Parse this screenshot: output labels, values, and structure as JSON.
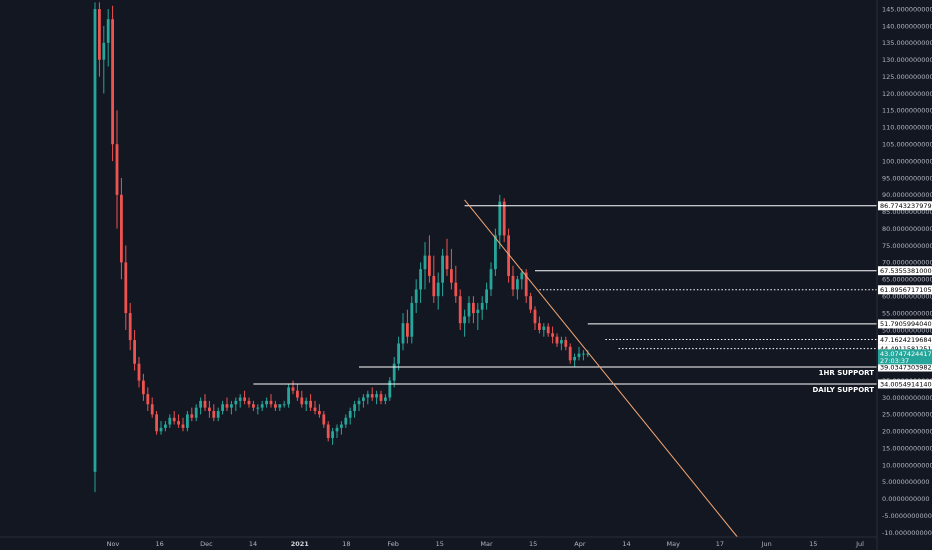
{
  "colors": {
    "background": "#131722",
    "up": "#26a69a",
    "down": "#ef5350",
    "line": "#ffffff",
    "trendline": "#f5a572",
    "axis_text": "#b2b5be"
  },
  "chart_data": {
    "type": "candlestick",
    "y_ticks": [
      "145.0000000000",
      "140.0000000000",
      "135.0000000000",
      "130.0000000000",
      "125.0000000000",
      "120.0000000000",
      "115.0000000000",
      "110.0000000000",
      "105.0000000000",
      "100.0000000000",
      "95.0000000000",
      "90.0000000000",
      "85.0000000000",
      "80.0000000000",
      "75.0000000000",
      "70.0000000000",
      "65.0000000000",
      "60.0000000000",
      "55.0000000000",
      "50.0000000000",
      "45.0000000000",
      "40.0000000000",
      "35.0000000000",
      "30.0000000000",
      "25.0000000000",
      "20.0000000000",
      "15.0000000000",
      "10.0000000000",
      "5.0000000000",
      "0.0000000000",
      "-5.0000000000",
      "-10.0000000000"
    ],
    "x_ticks": [
      {
        "label": "Nov",
        "bold": false
      },
      {
        "label": "16",
        "bold": false
      },
      {
        "label": "Dec",
        "bold": false
      },
      {
        "label": "14",
        "bold": false
      },
      {
        "label": "2021",
        "bold": true
      },
      {
        "label": "18",
        "bold": false
      },
      {
        "label": "Feb",
        "bold": false
      },
      {
        "label": "15",
        "bold": false
      },
      {
        "label": "Mar",
        "bold": false
      },
      {
        "label": "15",
        "bold": false
      },
      {
        "label": "Apr",
        "bold": false
      },
      {
        "label": "14",
        "bold": false
      },
      {
        "label": "May",
        "bold": false
      },
      {
        "label": "17",
        "bold": false
      },
      {
        "label": "Jun",
        "bold": false
      },
      {
        "label": "15",
        "bold": false
      },
      {
        "label": "Jul",
        "bold": false
      }
    ],
    "ylim": [
      -11.3,
      146.8
    ],
    "price_levels": [
      {
        "label": "86.7743237979",
        "value": 86.77,
        "style": "solid",
        "x_from": 84
      },
      {
        "label": "67.5355381000",
        "value": 67.54,
        "style": "solid",
        "x_from": 100
      },
      {
        "label": "61.8956717105",
        "value": 61.9,
        "style": "dotted",
        "x_from": 101
      },
      {
        "label": "51.7905994040",
        "value": 51.79,
        "style": "solid",
        "x_from": 112
      },
      {
        "label": "47.1624219684",
        "value": 47.16,
        "style": "dotted",
        "x_from": 116
      },
      {
        "label": "44.4911581251",
        "value": 44.49,
        "style": "dotted",
        "x_from": 119
      },
      {
        "label": "39.0347303982",
        "value": 39.03,
        "style": "solid",
        "x_from": 60
      },
      {
        "label": "34.0054914140",
        "value": 34.01,
        "style": "solid",
        "x_from": 36
      }
    ],
    "current_price": {
      "label": "43.0747424417",
      "countdown": "27:03:37",
      "value": 43.07
    },
    "annotations": [
      {
        "text": "1HR SUPPORT",
        "value": 39.03
      },
      {
        "text": "DAILY SUPPORT",
        "value": 34.01
      }
    ],
    "trendline": {
      "from": {
        "bar": 84,
        "value": 88.5
      },
      "to": {
        "bar": 146,
        "value": -11.3
      }
    },
    "candles": [
      [
        8,
        147,
        2,
        145
      ],
      [
        145,
        147,
        125,
        130
      ],
      [
        130,
        140,
        120,
        135
      ],
      [
        135,
        145,
        128,
        142
      ],
      [
        142,
        146,
        100,
        105
      ],
      [
        105,
        115,
        80,
        90
      ],
      [
        90,
        95,
        65,
        70
      ],
      [
        70,
        75,
        50,
        55
      ],
      [
        55,
        58,
        44,
        47
      ],
      [
        47,
        50,
        38,
        40
      ],
      [
        40,
        42,
        33,
        35
      ],
      [
        35,
        37,
        29,
        31
      ],
      [
        31,
        33,
        26,
        28
      ],
      [
        28,
        30,
        24,
        25
      ],
      [
        25,
        26,
        19,
        20
      ],
      [
        20,
        23,
        19,
        21
      ],
      [
        21,
        23,
        20,
        22
      ],
      [
        22,
        25,
        21,
        24
      ],
      [
        24,
        26,
        22,
        23
      ],
      [
        23,
        25,
        21,
        22
      ],
      [
        22,
        24,
        20,
        21
      ],
      [
        21,
        26,
        20,
        25
      ],
      [
        25,
        27,
        23,
        24
      ],
      [
        24,
        28,
        23,
        27
      ],
      [
        27,
        30,
        25,
        29
      ],
      [
        29,
        31,
        26,
        27
      ],
      [
        27,
        29,
        24,
        26
      ],
      [
        26,
        28,
        23,
        24
      ],
      [
        24,
        27,
        23,
        26
      ],
      [
        26,
        29,
        25,
        28
      ],
      [
        28,
        30,
        26,
        27
      ],
      [
        27,
        29,
        25,
        28
      ],
      [
        28,
        30,
        26,
        29
      ],
      [
        29,
        31,
        27,
        30
      ],
      [
        30,
        32,
        28,
        29
      ],
      [
        29,
        30,
        27,
        28
      ],
      [
        28,
        29,
        26,
        27
      ],
      [
        27,
        28,
        25,
        27
      ],
      [
        27,
        29,
        26,
        28
      ],
      [
        28,
        30,
        27,
        29
      ],
      [
        29,
        31,
        27,
        28
      ],
      [
        28,
        29,
        26,
        27
      ],
      [
        27,
        28,
        26,
        28
      ],
      [
        28,
        29,
        27,
        28
      ],
      [
        28,
        34,
        27,
        33
      ],
      [
        33,
        35,
        31,
        32
      ],
      [
        32,
        34,
        29,
        30
      ],
      [
        30,
        32,
        27,
        28
      ],
      [
        28,
        30,
        26,
        29
      ],
      [
        29,
        31,
        26,
        27
      ],
      [
        27,
        29,
        25,
        26
      ],
      [
        26,
        28,
        24,
        25
      ],
      [
        25,
        26,
        21,
        22
      ],
      [
        22,
        23,
        17,
        18
      ],
      [
        18,
        21,
        16,
        20
      ],
      [
        20,
        22,
        18,
        21
      ],
      [
        21,
        23,
        19,
        22
      ],
      [
        22,
        25,
        21,
        24
      ],
      [
        24,
        27,
        22,
        26
      ],
      [
        26,
        29,
        24,
        28
      ],
      [
        28,
        30,
        26,
        29
      ],
      [
        29,
        31,
        27,
        30
      ],
      [
        30,
        32,
        28,
        31
      ],
      [
        31,
        33,
        29,
        30
      ],
      [
        30,
        32,
        28,
        31
      ],
      [
        31,
        32,
        28,
        29
      ],
      [
        29,
        31,
        28,
        30
      ],
      [
        30,
        36,
        29,
        35
      ],
      [
        35,
        42,
        33,
        40
      ],
      [
        40,
        48,
        38,
        46
      ],
      [
        46,
        55,
        44,
        52
      ],
      [
        52,
        56,
        46,
        48
      ],
      [
        48,
        60,
        46,
        58
      ],
      [
        58,
        65,
        55,
        62
      ],
      [
        62,
        70,
        58,
        68
      ],
      [
        68,
        76,
        62,
        72
      ],
      [
        72,
        78,
        64,
        66
      ],
      [
        66,
        72,
        58,
        60
      ],
      [
        60,
        67,
        56,
        64
      ],
      [
        64,
        74,
        60,
        72
      ],
      [
        72,
        77,
        66,
        68
      ],
      [
        68,
        74,
        62,
        64
      ],
      [
        64,
        69,
        58,
        60
      ],
      [
        60,
        62,
        50,
        52
      ],
      [
        52,
        56,
        48,
        54
      ],
      [
        54,
        60,
        52,
        58
      ],
      [
        58,
        60,
        52,
        55
      ],
      [
        55,
        58,
        50,
        56
      ],
      [
        56,
        60,
        53,
        58
      ],
      [
        58,
        64,
        56,
        62
      ],
      [
        62,
        70,
        60,
        68
      ],
      [
        68,
        80,
        66,
        78
      ],
      [
        78,
        90,
        74,
        88
      ],
      [
        88,
        89,
        76,
        78
      ],
      [
        78,
        80,
        64,
        66
      ],
      [
        66,
        69,
        60,
        62
      ],
      [
        62,
        66,
        59,
        65
      ],
      [
        65,
        68,
        62,
        67
      ],
      [
        67,
        68,
        58,
        60
      ],
      [
        60,
        61,
        55,
        56
      ],
      [
        56,
        57,
        50,
        52
      ],
      [
        52,
        54,
        49,
        50
      ],
      [
        50,
        52,
        48,
        51
      ],
      [
        51,
        52,
        48,
        49
      ],
      [
        49,
        51,
        46,
        48
      ],
      [
        48,
        49,
        45,
        46
      ],
      [
        46,
        48,
        44,
        47
      ],
      [
        47,
        48,
        44,
        45
      ],
      [
        45,
        46,
        40,
        41
      ],
      [
        41,
        43,
        39,
        42
      ],
      [
        42,
        45,
        41,
        43
      ],
      [
        43,
        44,
        41,
        43
      ],
      [
        43,
        44,
        42,
        43
      ]
    ]
  }
}
